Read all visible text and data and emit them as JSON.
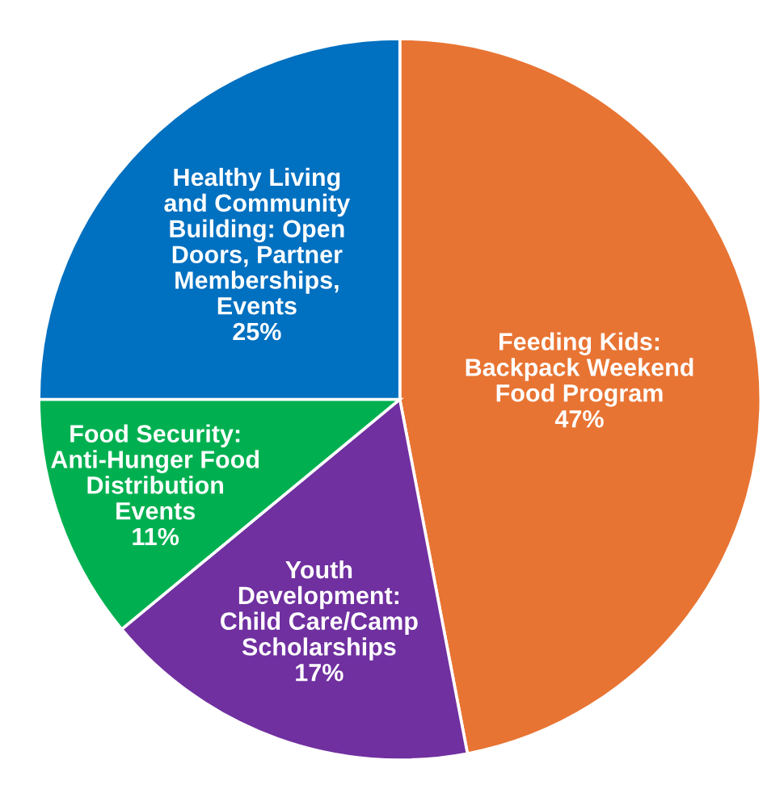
{
  "chart_data": {
    "type": "pie",
    "categories": [
      "Feeding Kids:\nBackpack Weekend\nFood Program",
      "Youth\nDevelopment:\nChild Care/Camp\nScholarships",
      "Food Security:\nAnti-Hunger Food\nDistribution\nEvents",
      "Healthy Living\nand Community\nBuilding: Open\nDoors, Partner\nMemberships,\nEvents"
    ],
    "values": [
      47,
      17,
      11,
      25
    ],
    "value_labels": [
      "47%",
      "17%",
      "11%",
      "25%"
    ],
    "colors": [
      "#e87433",
      "#7030a0",
      "#00b050",
      "#0070c0"
    ],
    "legend": false
  }
}
